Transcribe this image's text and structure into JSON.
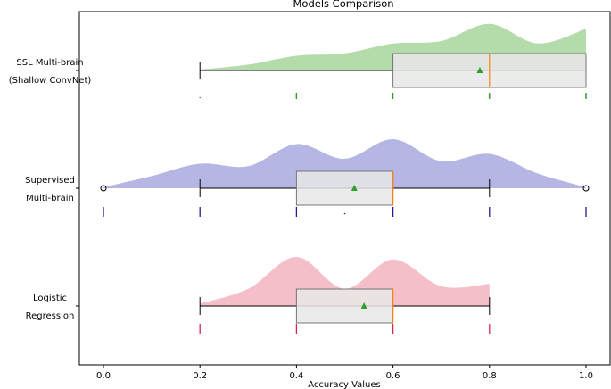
{
  "chart_data": {
    "type": "raincloud",
    "title": "Models Comparison",
    "xlabel": "Accuracy Values",
    "ylabel": "",
    "xlim": [
      -0.05,
      1.05
    ],
    "xticks": [
      "0.0",
      "0.2",
      "0.4",
      "0.6",
      "0.8",
      "1.0"
    ],
    "series": [
      {
        "name": "SSL Multi-brain (Shallow ConvNet)",
        "label_lines": [
          "SSL Multi-brain",
          "(Shallow ConvNet)"
        ],
        "color": "#8cc97e",
        "rug_color": "#2ca02c",
        "whisker_low": 0.2,
        "q1": 0.6,
        "median": 0.8,
        "q3": 1.0,
        "whisker_high": 1.0,
        "mean": 0.78,
        "outliers": [],
        "points": [
          0.2,
          0.4,
          0.4,
          0.6,
          0.8,
          0.8,
          1.0,
          1.0
        ],
        "density_x": [
          0.2,
          0.3,
          0.4,
          0.5,
          0.6,
          0.7,
          0.8,
          0.9,
          1.0
        ],
        "density_y": [
          0.02,
          0.12,
          0.3,
          0.35,
          0.55,
          0.6,
          0.95,
          0.55,
          0.85
        ]
      },
      {
        "name": "Supervised Multi-brain",
        "label_lines": [
          "Supervised",
          "Multi-brain"
        ],
        "color": "#8f8fd6",
        "rug_color": "#1f1f8c",
        "whisker_low": 0.2,
        "q1": 0.4,
        "median": 0.6,
        "q3": 0.6,
        "whisker_high": 0.8,
        "mean": 0.52,
        "outliers": [
          0.0,
          1.0
        ],
        "points": [
          0.0,
          0.2,
          0.4,
          0.5,
          0.6,
          0.8,
          1.0
        ],
        "density_x": [
          0.0,
          0.1,
          0.2,
          0.3,
          0.4,
          0.5,
          0.6,
          0.7,
          0.8,
          0.9,
          1.0
        ],
        "density_y": [
          0.02,
          0.25,
          0.5,
          0.45,
          0.9,
          0.6,
          1.0,
          0.55,
          0.7,
          0.3,
          0.02
        ]
      },
      {
        "name": "Logistic Regression",
        "label_lines": [
          "Logistic",
          "Regression"
        ],
        "color": "#ef9cac",
        "rug_color": "#d62754",
        "whisker_low": 0.2,
        "q1": 0.4,
        "median": 0.6,
        "q3": 0.6,
        "whisker_high": 0.8,
        "mean": 0.54,
        "outliers": [],
        "points": [
          0.2,
          0.4,
          0.6,
          0.8
        ],
        "density_x": [
          0.2,
          0.3,
          0.4,
          0.5,
          0.6,
          0.7,
          0.8
        ],
        "density_y": [
          0.05,
          0.35,
          1.0,
          0.35,
          0.95,
          0.4,
          0.45
        ]
      }
    ]
  }
}
